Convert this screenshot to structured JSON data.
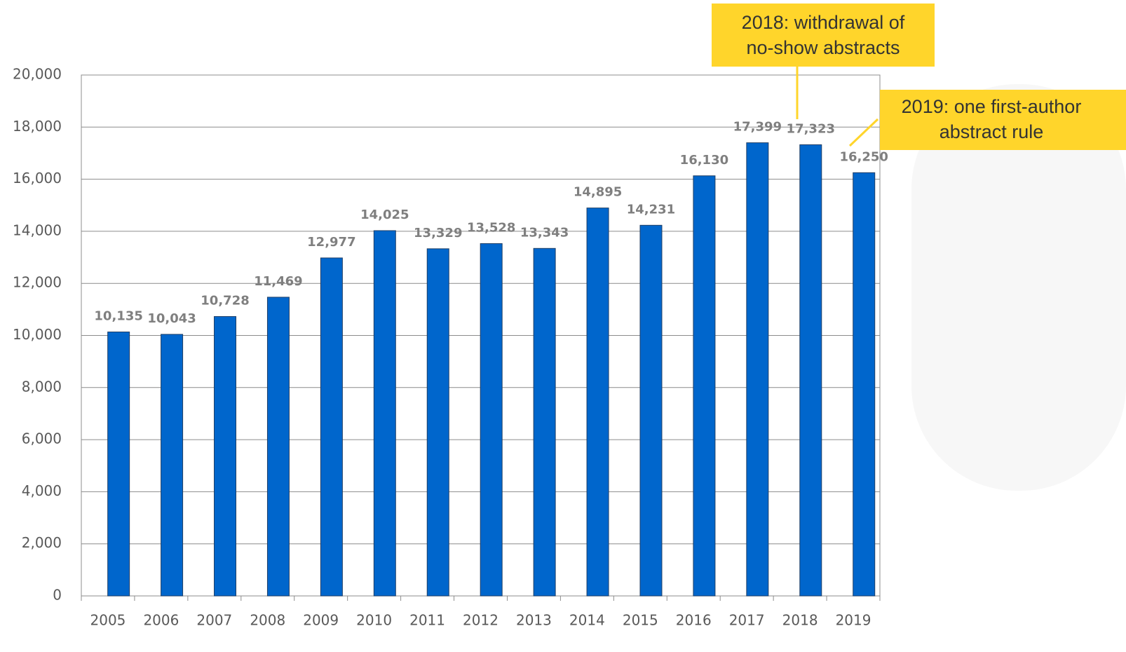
{
  "chart_data": {
    "type": "bar",
    "categories": [
      "2005",
      "2006",
      "2007",
      "2008",
      "2009",
      "2010",
      "2011",
      "2012",
      "2013",
      "2014",
      "2015",
      "2016",
      "2017",
      "2018",
      "2019"
    ],
    "values": [
      10135,
      10043,
      10728,
      11469,
      12977,
      14025,
      13329,
      13528,
      13343,
      14895,
      14231,
      16130,
      17399,
      17323,
      16250
    ],
    "value_labels": [
      "10,135",
      "10,043",
      "10,728",
      "11,469",
      "12,977",
      "14,025",
      "13,329",
      "13,528",
      "13,343",
      "14,895",
      "14,231",
      "16,130",
      "17,399",
      "17,323",
      "16,250"
    ],
    "color": "#0066cc",
    "ylim": [
      0,
      20000
    ],
    "yticks": [
      0,
      {
        "value": 2000,
        "label": "2,000"
      },
      {
        "value": 4000,
        "label": "4,000"
      },
      {
        "value": 6000,
        "label": "6,000"
      },
      {
        "value": 8000,
        "label": "8,000"
      },
      {
        "value": 10000,
        "label": "10,000"
      },
      {
        "value": 12000,
        "label": "12,000"
      },
      {
        "value": 14000,
        "label": "14,000"
      },
      {
        "value": 16000,
        "label": "16,000"
      },
      {
        "value": 18000,
        "label": "18,000"
      },
      {
        "value": 20000,
        "label": "20,000"
      }
    ],
    "grid": true,
    "annotations": [
      {
        "lines": [
          "2018: withdrawal of",
          "no-show abstracts"
        ]
      },
      {
        "lines": [
          "2019: one first-author",
          "abstract rule"
        ]
      }
    ]
  }
}
